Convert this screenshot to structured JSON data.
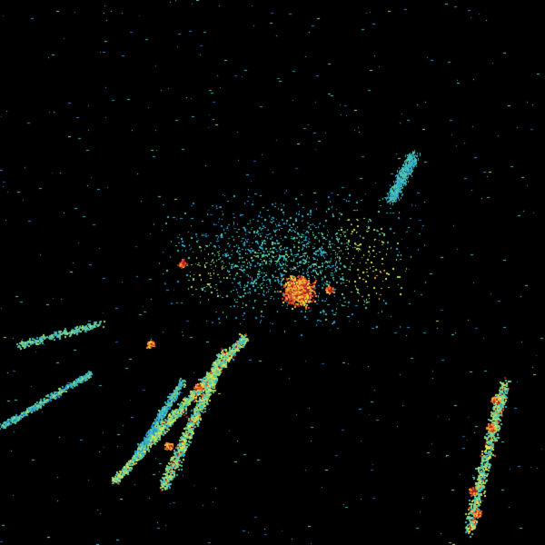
{
  "image": {
    "subject": "weather-radar-reflectivity",
    "background_color": "#000000",
    "palette": [
      "#0d3a8a",
      "#1663b8",
      "#1f8fd0",
      "#2fb3c8",
      "#5fc9a0",
      "#a8dc6a",
      "#e6e64a",
      "#f0a830",
      "#e0502a",
      "#b01e1e"
    ],
    "radar_site_marker_color": "#000000"
  }
}
